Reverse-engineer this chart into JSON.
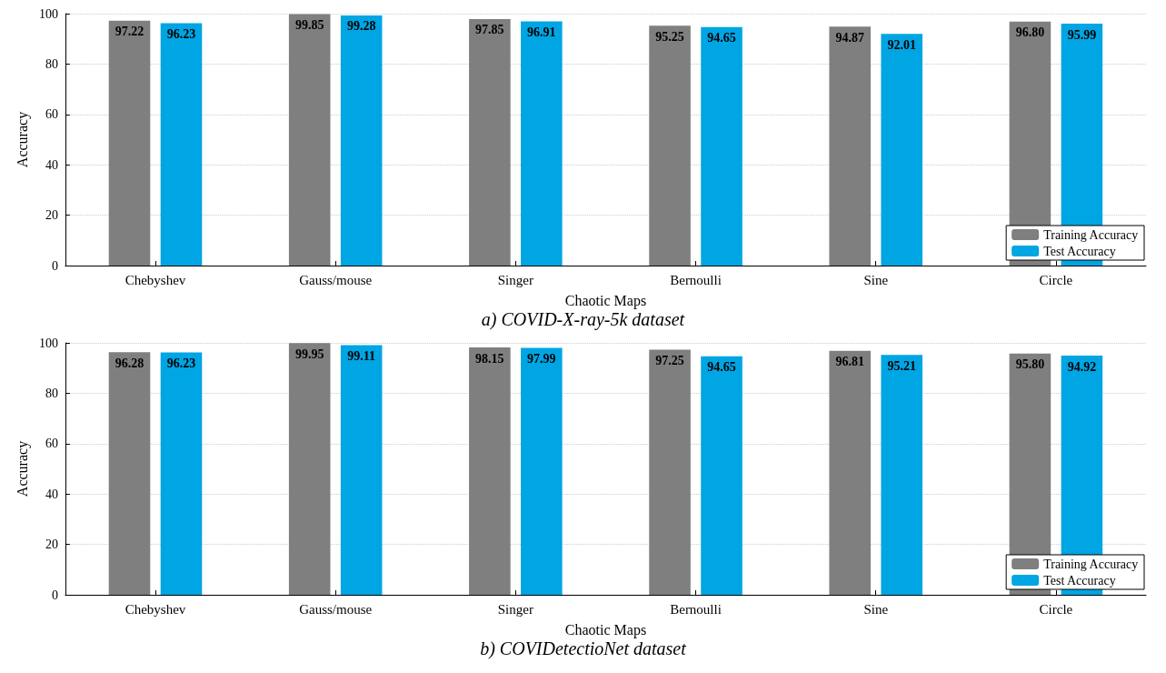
{
  "chart_data": [
    {
      "type": "bar",
      "title": "a) COVID-X-ray-5k dataset",
      "xlabel": "Chaotic Maps",
      "ylabel": "Accuracy",
      "categories": [
        "Chebyshev",
        "Gauss/mouse",
        "Singer",
        "Bernoulli",
        "Sine",
        "Circle"
      ],
      "series": [
        {
          "name": "Training Accuracy",
          "color": "#7f7f7f",
          "values": [
            97.22,
            99.85,
            97.85,
            95.25,
            94.87,
            96.8
          ],
          "value_labels": [
            "97.22",
            "99.85",
            "97.85",
            "95.25",
            "94.87",
            "96.80"
          ]
        },
        {
          "name": "Test Accuracy",
          "color": "#00a5e3",
          "values": [
            96.23,
            99.28,
            96.91,
            94.65,
            92.01,
            95.99
          ],
          "value_labels": [
            "96.23",
            "99.28",
            "96.91",
            "94.65",
            "92.01",
            "95.99"
          ]
        }
      ],
      "ylim": [
        0,
        100
      ],
      "yticks": [
        0,
        20,
        40,
        60,
        80,
        100
      ],
      "grid": "y",
      "legend": "bottom right"
    },
    {
      "type": "bar",
      "title": "b) COVIDetectioNet dataset",
      "xlabel": "Chaotic Maps",
      "ylabel": "Accuracy",
      "categories": [
        "Chebyshev",
        "Gauss/mouse",
        "Singer",
        "Bernoulli",
        "Sine",
        "Circle"
      ],
      "series": [
        {
          "name": "Training Accuracy",
          "color": "#7f7f7f",
          "values": [
            96.28,
            99.95,
            98.15,
            97.25,
            96.81,
            95.8
          ],
          "value_labels": [
            "96.28",
            "99.95",
            "98.15",
            "97.25",
            "96.81",
            "95.80"
          ]
        },
        {
          "name": "Test Accuracy",
          "color": "#00a5e3",
          "values": [
            96.23,
            99.11,
            97.99,
            94.65,
            95.21,
            94.92
          ],
          "value_labels": [
            "96.23",
            "99.11",
            "97.99",
            "94.65",
            "95.21",
            "94.92"
          ]
        }
      ],
      "ylim": [
        0,
        100
      ],
      "yticks": [
        0,
        20,
        40,
        60,
        80,
        100
      ],
      "grid": "y",
      "legend": "bottom right"
    }
  ]
}
